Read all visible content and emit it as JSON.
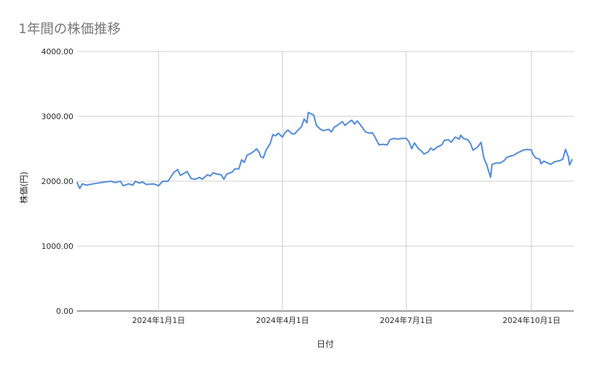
{
  "chart_data": {
    "type": "line",
    "title": "1年間の株価推移",
    "xlabel": "日付",
    "ylabel": "株価(円)",
    "ylim": [
      0,
      4000
    ],
    "yticks": [
      "0.00",
      "1000.00",
      "2000.00",
      "3000.00",
      "4000.00"
    ],
    "xlim": [
      "2023-11-02",
      "2024-11-01"
    ],
    "xticks": [
      {
        "date": "2024-01-01",
        "label": "2024年1月1日"
      },
      {
        "date": "2024-04-01",
        "label": "2024年4月1日"
      },
      {
        "date": "2024-07-01",
        "label": "2024年7月1日"
      },
      {
        "date": "2024-10-01",
        "label": "2024年10月1日"
      }
    ],
    "grid": true,
    "legend": "none",
    "series": [
      {
        "color": "#4a86d8",
        "points": [
          [
            "2023-11-02",
            1990
          ],
          [
            "2023-11-04",
            1890
          ],
          [
            "2023-11-06",
            1960
          ],
          [
            "2023-11-09",
            1940
          ],
          [
            "2023-11-14",
            1960
          ],
          [
            "2023-11-20",
            1980
          ],
          [
            "2023-11-27",
            2000
          ],
          [
            "2023-11-30",
            1980
          ],
          [
            "2023-12-04",
            2000
          ],
          [
            "2023-12-06",
            1930
          ],
          [
            "2023-12-10",
            1960
          ],
          [
            "2023-12-13",
            1940
          ],
          [
            "2023-12-15",
            2000
          ],
          [
            "2023-12-18",
            1970
          ],
          [
            "2023-12-20",
            1990
          ],
          [
            "2023-12-23",
            1950
          ],
          [
            "2023-12-28",
            1960
          ],
          [
            "2023-12-31",
            1940
          ],
          [
            "2024-01-01",
            1930
          ],
          [
            "2024-01-04",
            2000
          ],
          [
            "2024-01-08",
            2000
          ],
          [
            "2024-01-12",
            2130
          ],
          [
            "2024-01-15",
            2180
          ],
          [
            "2024-01-17",
            2090
          ],
          [
            "2024-01-22",
            2150
          ],
          [
            "2024-01-25",
            2040
          ],
          [
            "2024-01-28",
            2030
          ],
          [
            "2024-01-31",
            2060
          ],
          [
            "2024-02-02",
            2030
          ],
          [
            "2024-02-06",
            2100
          ],
          [
            "2024-02-08",
            2080
          ],
          [
            "2024-02-10",
            2130
          ],
          [
            "2024-02-13",
            2110
          ],
          [
            "2024-02-16",
            2100
          ],
          [
            "2024-02-18",
            2030
          ],
          [
            "2024-02-20",
            2110
          ],
          [
            "2024-02-24",
            2140
          ],
          [
            "2024-02-26",
            2190
          ],
          [
            "2024-02-29",
            2190
          ],
          [
            "2024-03-02",
            2330
          ],
          [
            "2024-03-04",
            2290
          ],
          [
            "2024-03-06",
            2400
          ],
          [
            "2024-03-08",
            2420
          ],
          [
            "2024-03-11",
            2460
          ],
          [
            "2024-03-13",
            2500
          ],
          [
            "2024-03-15",
            2440
          ],
          [
            "2024-03-16",
            2380
          ],
          [
            "2024-03-18",
            2360
          ],
          [
            "2024-03-20",
            2480
          ],
          [
            "2024-03-23",
            2580
          ],
          [
            "2024-03-25",
            2720
          ],
          [
            "2024-03-27",
            2700
          ],
          [
            "2024-03-29",
            2740
          ],
          [
            "2024-04-01",
            2680
          ],
          [
            "2024-04-03",
            2750
          ],
          [
            "2024-04-05",
            2790
          ],
          [
            "2024-04-08",
            2730
          ],
          [
            "2024-04-10",
            2730
          ],
          [
            "2024-04-13",
            2800
          ],
          [
            "2024-04-15",
            2840
          ],
          [
            "2024-04-17",
            2960
          ],
          [
            "2024-04-19",
            2900
          ],
          [
            "2024-04-20",
            3060
          ],
          [
            "2024-04-24",
            3020
          ],
          [
            "2024-04-26",
            2860
          ],
          [
            "2024-04-29",
            2800
          ],
          [
            "2024-05-01",
            2780
          ],
          [
            "2024-05-03",
            2790
          ],
          [
            "2024-05-05",
            2800
          ],
          [
            "2024-05-07",
            2760
          ],
          [
            "2024-05-09",
            2830
          ],
          [
            "2024-05-12",
            2870
          ],
          [
            "2024-05-15",
            2920
          ],
          [
            "2024-05-17",
            2860
          ],
          [
            "2024-05-19",
            2900
          ],
          [
            "2024-05-22",
            2940
          ],
          [
            "2024-05-24",
            2880
          ],
          [
            "2024-05-26",
            2930
          ],
          [
            "2024-05-29",
            2850
          ],
          [
            "2024-06-01",
            2760
          ],
          [
            "2024-06-04",
            2740
          ],
          [
            "2024-06-06",
            2750
          ],
          [
            "2024-06-08",
            2680
          ],
          [
            "2024-06-11",
            2560
          ],
          [
            "2024-06-14",
            2570
          ],
          [
            "2024-06-17",
            2560
          ],
          [
            "2024-06-19",
            2640
          ],
          [
            "2024-06-22",
            2660
          ],
          [
            "2024-06-25",
            2650
          ],
          [
            "2024-06-28",
            2660
          ],
          [
            "2024-07-01",
            2660
          ],
          [
            "2024-07-03",
            2610
          ],
          [
            "2024-07-05",
            2500
          ],
          [
            "2024-07-07",
            2590
          ],
          [
            "2024-07-10",
            2500
          ],
          [
            "2024-07-12",
            2470
          ],
          [
            "2024-07-14",
            2420
          ],
          [
            "2024-07-17",
            2450
          ],
          [
            "2024-07-19",
            2510
          ],
          [
            "2024-07-21",
            2480
          ],
          [
            "2024-07-24",
            2530
          ],
          [
            "2024-07-27",
            2560
          ],
          [
            "2024-07-29",
            2630
          ],
          [
            "2024-08-01",
            2640
          ],
          [
            "2024-08-03",
            2600
          ],
          [
            "2024-08-06",
            2680
          ],
          [
            "2024-08-09",
            2650
          ],
          [
            "2024-08-10",
            2710
          ],
          [
            "2024-08-12",
            2660
          ],
          [
            "2024-08-15",
            2640
          ],
          [
            "2024-08-17",
            2590
          ],
          [
            "2024-08-19",
            2480
          ],
          [
            "2024-08-22",
            2520
          ],
          [
            "2024-08-25",
            2600
          ],
          [
            "2024-08-27",
            2360
          ],
          [
            "2024-08-29",
            2260
          ],
          [
            "2024-09-01",
            2060
          ],
          [
            "2024-09-02",
            2260
          ],
          [
            "2024-09-05",
            2280
          ],
          [
            "2024-09-08",
            2280
          ],
          [
            "2024-09-11",
            2320
          ],
          [
            "2024-09-13",
            2370
          ],
          [
            "2024-09-16",
            2390
          ],
          [
            "2024-09-18",
            2400
          ],
          [
            "2024-09-21",
            2440
          ],
          [
            "2024-09-23",
            2460
          ],
          [
            "2024-09-25",
            2480
          ],
          [
            "2024-09-28",
            2490
          ],
          [
            "2024-10-01",
            2480
          ],
          [
            "2024-10-02",
            2420
          ],
          [
            "2024-10-04",
            2360
          ],
          [
            "2024-10-07",
            2340
          ],
          [
            "2024-10-08",
            2270
          ],
          [
            "2024-10-10",
            2310
          ],
          [
            "2024-10-13",
            2280
          ],
          [
            "2024-10-15",
            2260
          ],
          [
            "2024-10-18",
            2300
          ],
          [
            "2024-10-22",
            2320
          ],
          [
            "2024-10-24",
            2340
          ],
          [
            "2024-10-26",
            2490
          ],
          [
            "2024-10-28",
            2380
          ],
          [
            "2024-10-29",
            2250
          ],
          [
            "2024-10-31",
            2340
          ]
        ]
      }
    ]
  }
}
